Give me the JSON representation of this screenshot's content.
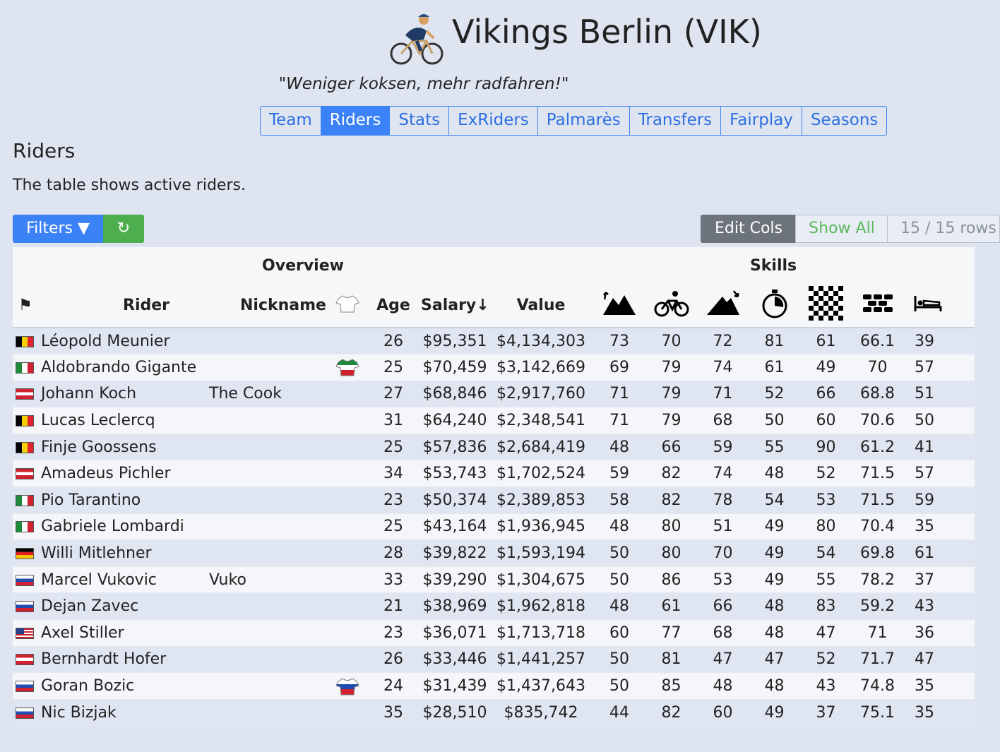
{
  "team": {
    "title": "Vikings Berlin (VIK)",
    "motto": "\"Weniger koksen, mehr radfahren!\""
  },
  "nav": {
    "tabs": [
      {
        "label": "Team",
        "active": false
      },
      {
        "label": "Riders",
        "active": true
      },
      {
        "label": "Stats",
        "active": false
      },
      {
        "label": "ExRiders",
        "active": false
      },
      {
        "label": "Palmarès",
        "active": false
      },
      {
        "label": "Transfers",
        "active": false
      },
      {
        "label": "Fairplay",
        "active": false
      },
      {
        "label": "Seasons",
        "active": false
      }
    ]
  },
  "section": {
    "title": "Riders",
    "description": "The table shows active riders."
  },
  "toolbar": {
    "filters_label": "Filters ▼",
    "refresh_icon": "↻",
    "edit_cols_label": "Edit Cols",
    "show_all_label": "Show All",
    "row_count": "15 / 15 rows"
  },
  "table": {
    "groups": {
      "overview": "Overview",
      "skills": "Skills"
    },
    "headers": {
      "flag": "⚑",
      "rider": "Rider",
      "nickname": "Nickname",
      "age": "Age",
      "salary": "Salary↓",
      "value": "Value"
    },
    "skill_icons": [
      "mountain-icon",
      "bicycle-icon",
      "hill-icon",
      "stopwatch-icon",
      "checkered-flag-icon",
      "cobblestone-icon",
      "bed-icon"
    ],
    "rows": [
      {
        "flag": "be",
        "rider": "Léopold Meunier",
        "nickname": "",
        "jersey": "",
        "age": "26",
        "salary": "$95,351",
        "value": "$4,134,303",
        "skills": [
          "73",
          "70",
          "72",
          "81",
          "61",
          "66.1",
          "39"
        ]
      },
      {
        "flag": "it",
        "rider": "Aldobrando Gigante",
        "nickname": "",
        "jersey": "it",
        "age": "25",
        "salary": "$70,459",
        "value": "$3,142,669",
        "skills": [
          "69",
          "79",
          "74",
          "61",
          "49",
          "70",
          "57"
        ]
      },
      {
        "flag": "at",
        "rider": "Johann Koch",
        "nickname": "The Cook",
        "jersey": "",
        "age": "27",
        "salary": "$68,846",
        "value": "$2,917,760",
        "skills": [
          "71",
          "79",
          "71",
          "52",
          "66",
          "68.8",
          "51"
        ]
      },
      {
        "flag": "be",
        "rider": "Lucas Leclercq",
        "nickname": "",
        "jersey": "",
        "age": "31",
        "salary": "$64,240",
        "value": "$2,348,541",
        "skills": [
          "71",
          "79",
          "68",
          "50",
          "60",
          "70.6",
          "50"
        ]
      },
      {
        "flag": "be",
        "rider": "Finje Goossens",
        "nickname": "",
        "jersey": "",
        "age": "25",
        "salary": "$57,836",
        "value": "$2,684,419",
        "skills": [
          "48",
          "66",
          "59",
          "55",
          "90",
          "61.2",
          "41"
        ]
      },
      {
        "flag": "at",
        "rider": "Amadeus Pichler",
        "nickname": "",
        "jersey": "",
        "age": "34",
        "salary": "$53,743",
        "value": "$1,702,524",
        "skills": [
          "59",
          "82",
          "74",
          "48",
          "52",
          "71.5",
          "57"
        ]
      },
      {
        "flag": "it",
        "rider": "Pio Tarantino",
        "nickname": "",
        "jersey": "",
        "age": "23",
        "salary": "$50,374",
        "value": "$2,389,853",
        "skills": [
          "58",
          "82",
          "78",
          "54",
          "53",
          "71.5",
          "59"
        ]
      },
      {
        "flag": "it",
        "rider": "Gabriele Lombardi",
        "nickname": "",
        "jersey": "",
        "age": "25",
        "salary": "$43,164",
        "value": "$1,936,945",
        "skills": [
          "48",
          "80",
          "51",
          "49",
          "80",
          "70.4",
          "35"
        ]
      },
      {
        "flag": "de",
        "rider": "Willi Mitlehner",
        "nickname": "",
        "jersey": "",
        "age": "28",
        "salary": "$39,822",
        "value": "$1,593,194",
        "skills": [
          "50",
          "80",
          "70",
          "49",
          "54",
          "69.8",
          "61"
        ]
      },
      {
        "flag": "si",
        "rider": "Marcel Vukovic",
        "nickname": "Vuko",
        "jersey": "",
        "age": "33",
        "salary": "$39,290",
        "value": "$1,304,675",
        "skills": [
          "50",
          "86",
          "53",
          "49",
          "55",
          "78.2",
          "37"
        ]
      },
      {
        "flag": "si",
        "rider": "Dejan Zavec",
        "nickname": "",
        "jersey": "",
        "age": "21",
        "salary": "$38,969",
        "value": "$1,962,818",
        "skills": [
          "48",
          "61",
          "66",
          "48",
          "83",
          "59.2",
          "43"
        ]
      },
      {
        "flag": "us",
        "rider": "Axel Stiller",
        "nickname": "",
        "jersey": "",
        "age": "23",
        "salary": "$36,071",
        "value": "$1,713,718",
        "skills": [
          "60",
          "77",
          "68",
          "48",
          "47",
          "71",
          "36"
        ]
      },
      {
        "flag": "at",
        "rider": "Bernhardt Hofer",
        "nickname": "",
        "jersey": "",
        "age": "26",
        "salary": "$33,446",
        "value": "$1,441,257",
        "skills": [
          "50",
          "81",
          "47",
          "47",
          "52",
          "71.7",
          "47"
        ]
      },
      {
        "flag": "si",
        "rider": "Goran Bozic",
        "nickname": "",
        "jersey": "si",
        "age": "24",
        "salary": "$31,439",
        "value": "$1,437,643",
        "skills": [
          "50",
          "85",
          "48",
          "48",
          "43",
          "74.8",
          "35"
        ]
      },
      {
        "flag": "si",
        "rider": "Nic Bizjak",
        "nickname": "",
        "jersey": "",
        "age": "35",
        "salary": "$28,510",
        "value": "$835,742",
        "skills": [
          "44",
          "82",
          "60",
          "49",
          "37",
          "75.1",
          "35"
        ]
      }
    ]
  }
}
